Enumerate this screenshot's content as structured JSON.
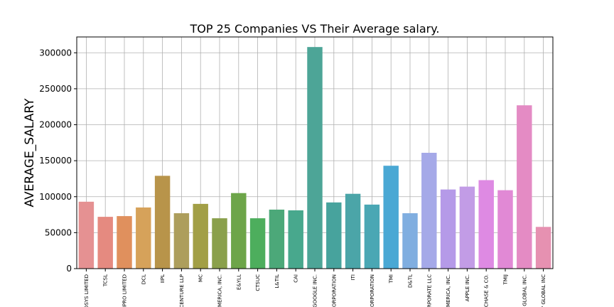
{
  "chart_data": {
    "type": "bar",
    "title": "TOP 25 Companies VS Their Average salary.",
    "xlabel": "",
    "ylabel": "AVERAGE_SALARY",
    "ylim": [
      0,
      322000
    ],
    "yticks": [
      "0",
      "50000",
      "100000",
      "150000",
      "200000",
      "250000",
      "300000"
    ],
    "grid": true,
    "categories": [
      "OSYS LIMITED",
      "TCSL",
      "IPRO LIMITED",
      "DCL",
      "IIPL",
      "CENTURE LLP",
      "MC",
      "MERICA, INC.",
      "E&YLL",
      "CTSUC",
      "L&TIL",
      "CAI",
      "GOOGLE INC.",
      "ORPORATION",
      "ITI",
      "ORPORATION",
      "TMI",
      "D&TL",
      "RPORATE LLC",
      "MERICA, INC.",
      "APPLE INC.",
      "CHASE & CO.",
      "TMIJ",
      "GLOBAL INC.",
      "' GLOBAL INC"
    ],
    "values": [
      93000,
      72000,
      73000,
      85000,
      129000,
      77000,
      90000,
      70000,
      105000,
      70000,
      82000,
      81000,
      308000,
      92000,
      104000,
      89000,
      143000,
      77000,
      161000,
      110000,
      114000,
      123000,
      109000,
      227000,
      58000
    ],
    "colors": [
      "#e59192",
      "#e58a80",
      "#e0905d",
      "#d6a25a",
      "#b8944a",
      "#ad9e5c",
      "#a29f46",
      "#8aa04c",
      "#6da549",
      "#4dae5d",
      "#4ca879",
      "#48a88d",
      "#4da597",
      "#47a39d",
      "#4ba5a8",
      "#4aa7b4",
      "#4aa8d4",
      "#80aee0",
      "#a5a9e8",
      "#b59ae8",
      "#c29ce6",
      "#de8ae3",
      "#e189d5",
      "#e48bc4",
      "#e691b1"
    ]
  }
}
